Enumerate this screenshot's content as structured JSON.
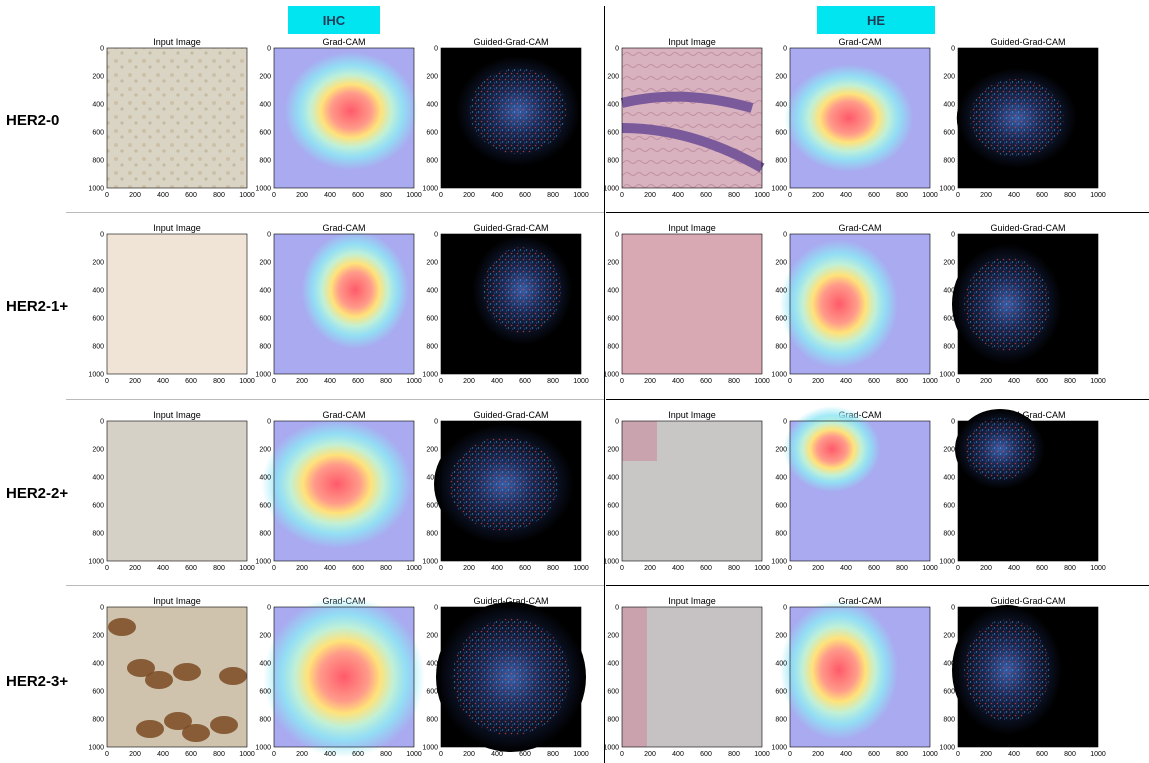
{
  "headers": {
    "ihc": "IHC",
    "he": "HE"
  },
  "rows": [
    {
      "label": "HER2-0"
    },
    {
      "label": "HER2-1+"
    },
    {
      "label": "HER2-2+"
    },
    {
      "label": "HER2-3+"
    }
  ],
  "panel_titles": [
    "Input Image",
    "Grad-CAM",
    "Guided-Grad-CAM"
  ],
  "axis_ticks": [
    "0",
    "200",
    "400",
    "600",
    "800",
    "1000"
  ]
}
